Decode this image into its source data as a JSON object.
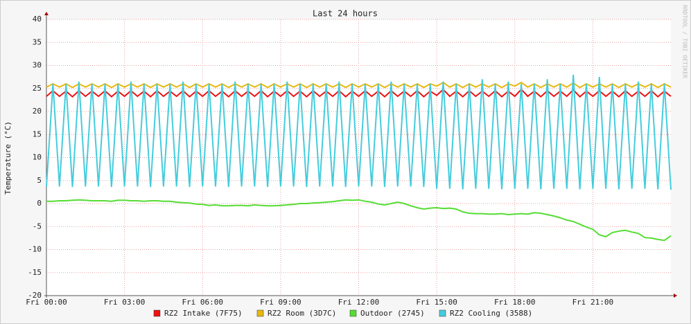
{
  "chart_data": {
    "type": "line",
    "title": "Last 24 hours",
    "y_label": "Temperature (°C)",
    "watermark": "RRDTOOL / TOBI OETIKER",
    "grid": true,
    "xlim": [
      0,
      24
    ],
    "xticks": [
      {
        "value": 0,
        "label": "Fri 00:00"
      },
      {
        "value": 3,
        "label": "Fri 03:00"
      },
      {
        "value": 6,
        "label": "Fri 06:00"
      },
      {
        "value": 9,
        "label": "Fri 09:00"
      },
      {
        "value": 12,
        "label": "Fri 12:00"
      },
      {
        "value": 15,
        "label": "Fri 15:00"
      },
      {
        "value": 18,
        "label": "Fri 18:00"
      },
      {
        "value": 21,
        "label": "Fri 21:00"
      }
    ],
    "ylim": [
      -20,
      40
    ],
    "yticks": [
      -20,
      -15,
      -10,
      -5,
      0,
      5,
      10,
      15,
      20,
      25,
      30,
      35,
      40
    ],
    "x": [
      0,
      0.25,
      0.5,
      0.75,
      1,
      1.25,
      1.5,
      1.75,
      2,
      2.25,
      2.5,
      2.75,
      3,
      3.25,
      3.5,
      3.75,
      4,
      4.25,
      4.5,
      4.75,
      5,
      5.25,
      5.5,
      5.75,
      6,
      6.25,
      6.5,
      6.75,
      7,
      7.25,
      7.5,
      7.75,
      8,
      8.25,
      8.5,
      8.75,
      9,
      9.25,
      9.5,
      9.75,
      10,
      10.25,
      10.5,
      10.75,
      11,
      11.25,
      11.5,
      11.75,
      12,
      12.25,
      12.5,
      12.75,
      13,
      13.25,
      13.5,
      13.75,
      14,
      14.25,
      14.5,
      14.75,
      15,
      15.25,
      15.5,
      15.75,
      16,
      16.25,
      16.5,
      16.75,
      17,
      17.25,
      17.5,
      17.75,
      18,
      18.25,
      18.5,
      18.75,
      19,
      19.25,
      19.5,
      19.75,
      20,
      20.25,
      20.5,
      20.75,
      21,
      21.25,
      21.5,
      21.75,
      22,
      22.25,
      22.5,
      22.75,
      23,
      23.25,
      23.5,
      23.75,
      24
    ],
    "series": [
      {
        "name": "RZ2 Intake (7F75)",
        "color": "#ee1111",
        "values": [
          23.3,
          24.5,
          23.3,
          24.4,
          23.2,
          24.5,
          23.3,
          24.4,
          23.3,
          24.5,
          23.2,
          24.4,
          23.3,
          24.5,
          23.3,
          24.4,
          23.2,
          24.5,
          23.3,
          24.4,
          23.3,
          24.5,
          23.2,
          24.4,
          23.3,
          24.5,
          23.3,
          24.4,
          23.2,
          24.5,
          23.3,
          24.4,
          23.3,
          24.5,
          23.2,
          24.4,
          23.3,
          24.5,
          23.3,
          24.4,
          23.2,
          24.5,
          23.3,
          24.4,
          23.3,
          24.5,
          23.2,
          24.4,
          23.3,
          24.5,
          23.3,
          24.4,
          23.2,
          24.5,
          23.3,
          24.4,
          23.3,
          24.5,
          23.2,
          24.4,
          23.5,
          24.8,
          23.3,
          24.4,
          23.2,
          24.5,
          23.3,
          24.4,
          23.3,
          24.5,
          23.2,
          24.4,
          23.3,
          24.8,
          23.3,
          24.4,
          23.2,
          24.5,
          23.3,
          24.4,
          23.3,
          24.7,
          23.2,
          24.4,
          23.3,
          24.5,
          23.3,
          24.4,
          23.2,
          24.5,
          23.3,
          24.4,
          23.3,
          24.5,
          23.2,
          24.4,
          23.3
        ]
      },
      {
        "name": "RZ2 Room (3D7C)",
        "color": "#e8b80e",
        "values": [
          25.3,
          26.0,
          25.3,
          26.0,
          25.2,
          26.0,
          25.3,
          26.0,
          25.3,
          26.0,
          25.2,
          26.0,
          25.3,
          26.0,
          25.3,
          26.0,
          25.2,
          26.0,
          25.3,
          26.0,
          25.3,
          26.0,
          25.2,
          26.0,
          25.3,
          26.0,
          25.3,
          26.0,
          25.2,
          26.0,
          25.3,
          26.0,
          25.3,
          26.0,
          25.2,
          26.0,
          25.3,
          26.0,
          25.3,
          26.0,
          25.2,
          26.0,
          25.3,
          26.0,
          25.3,
          26.0,
          25.2,
          26.0,
          25.3,
          26.0,
          25.3,
          26.0,
          25.2,
          26.0,
          25.3,
          26.0,
          25.3,
          26.0,
          25.2,
          26.0,
          25.5,
          26.3,
          25.3,
          26.0,
          25.2,
          26.0,
          25.3,
          26.0,
          25.3,
          26.0,
          25.2,
          26.0,
          25.5,
          26.3,
          25.3,
          26.0,
          25.2,
          26.0,
          25.3,
          26.0,
          25.3,
          26.2,
          25.2,
          26.0,
          25.3,
          26.0,
          25.3,
          26.0,
          25.2,
          26.0,
          25.3,
          26.0,
          25.3,
          26.0,
          25.2,
          26.0,
          25.3
        ]
      },
      {
        "name": "Outdoor (2745)",
        "color": "#55dd33",
        "values": [
          0.5,
          0.5,
          0.6,
          0.6,
          0.7,
          0.8,
          0.7,
          0.6,
          0.6,
          0.6,
          0.5,
          0.7,
          0.7,
          0.6,
          0.6,
          0.5,
          0.6,
          0.6,
          0.5,
          0.5,
          0.3,
          0.2,
          0.1,
          -0.1,
          -0.2,
          -0.4,
          -0.3,
          -0.5,
          -0.5,
          -0.4,
          -0.4,
          -0.5,
          -0.3,
          -0.4,
          -0.5,
          -0.5,
          -0.4,
          -0.3,
          -0.2,
          0,
          0,
          0.1,
          0.2,
          0.3,
          0.4,
          0.6,
          0.8,
          0.7,
          0.8,
          0.5,
          0.3,
          -0.1,
          -0.3,
          0,
          0.3,
          0,
          -0.5,
          -0.9,
          -1.2,
          -1.0,
          -0.9,
          -1.1,
          -1.0,
          -1.2,
          -1.8,
          -2.1,
          -2.2,
          -2.2,
          -2.3,
          -2.3,
          -2.2,
          -2.4,
          -2.3,
          -2.2,
          -2.3,
          -2.0,
          -2.1,
          -2.4,
          -2.7,
          -3.1,
          -3.6,
          -3.9,
          -4.5,
          -5.1,
          -5.6,
          -6.8,
          -7.2,
          -6.3,
          -6.0,
          -5.8,
          -6.2,
          -6.5,
          -7.4,
          -7.5,
          -7.8,
          -8.0,
          -7.0
        ]
      },
      {
        "name": "RZ2 Cooling (3588)",
        "color": "#44ccdd",
        "values": [
          3.7,
          26.0,
          3.7,
          26.0,
          3.6,
          26.5,
          3.7,
          26.0,
          3.7,
          26.0,
          3.6,
          26.0,
          3.7,
          26.5,
          3.7,
          26.0,
          3.6,
          26.0,
          3.7,
          26.0,
          3.7,
          26.5,
          3.6,
          26.0,
          3.7,
          26.0,
          3.7,
          26.0,
          3.6,
          26.5,
          3.7,
          26.0,
          3.7,
          26.0,
          3.6,
          26.0,
          3.7,
          26.5,
          3.7,
          26.0,
          3.6,
          26.0,
          3.7,
          26.0,
          3.7,
          26.5,
          3.6,
          26.0,
          3.7,
          26.0,
          3.7,
          26.0,
          3.6,
          26.5,
          3.7,
          26.0,
          3.7,
          26.0,
          3.6,
          26.0,
          3.2,
          26.5,
          3.2,
          26.0,
          3.1,
          26.0,
          3.2,
          27.0,
          3.2,
          26.0,
          3.1,
          26.5,
          3.2,
          26.0,
          3.2,
          26.0,
          3.1,
          27.0,
          3.2,
          26.0,
          3.2,
          28.0,
          3.1,
          26.0,
          3.2,
          27.5,
          3.2,
          26.0,
          3.1,
          26.0,
          3.2,
          26.5,
          3.2,
          26.0,
          3.1,
          26.0,
          3.0
        ]
      }
    ]
  }
}
